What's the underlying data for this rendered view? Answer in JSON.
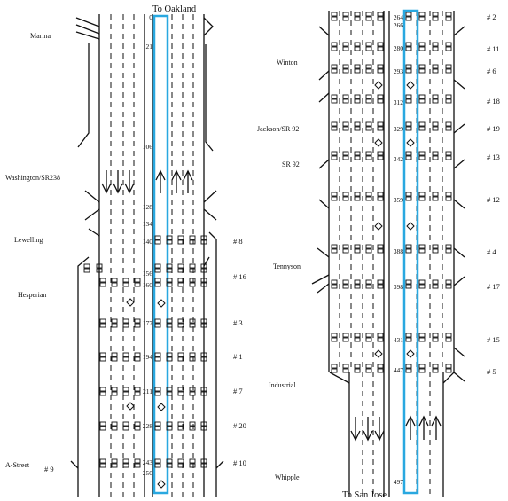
{
  "left": {
    "top_label": "To Oakland",
    "streets": [
      "Marina",
      "Washington/SR238",
      "Lewelling",
      "Hesperian",
      "A-Street"
    ],
    "stations": [
      "# 8",
      "# 16",
      "# 3",
      "# 1",
      "# 7",
      "# 20",
      "# 10",
      "# 9"
    ],
    "postmiles": [
      "0",
      "21",
      "106",
      "128",
      "134",
      "140",
      "156",
      "160",
      "177",
      "194",
      "211",
      "228",
      "243",
      "250"
    ]
  },
  "right": {
    "bottom_label": "To San Jose",
    "streets": [
      "Winton",
      "Jackson/SR 92",
      "SR 92",
      "Tennyson",
      "Industrial",
      "Whipple"
    ],
    "stations": [
      "# 2",
      "# 11",
      "# 6",
      "# 18",
      "# 19",
      "# 13",
      "# 12",
      "# 4",
      "# 17",
      "# 15",
      "# 5"
    ],
    "postmiles": [
      "264",
      "266",
      "280",
      "293",
      "312",
      "329",
      "342",
      "359",
      "388",
      "398",
      "431",
      "447",
      "497"
    ]
  },
  "colors": {
    "highlight": "#29a8e0",
    "ink": "#111111"
  }
}
